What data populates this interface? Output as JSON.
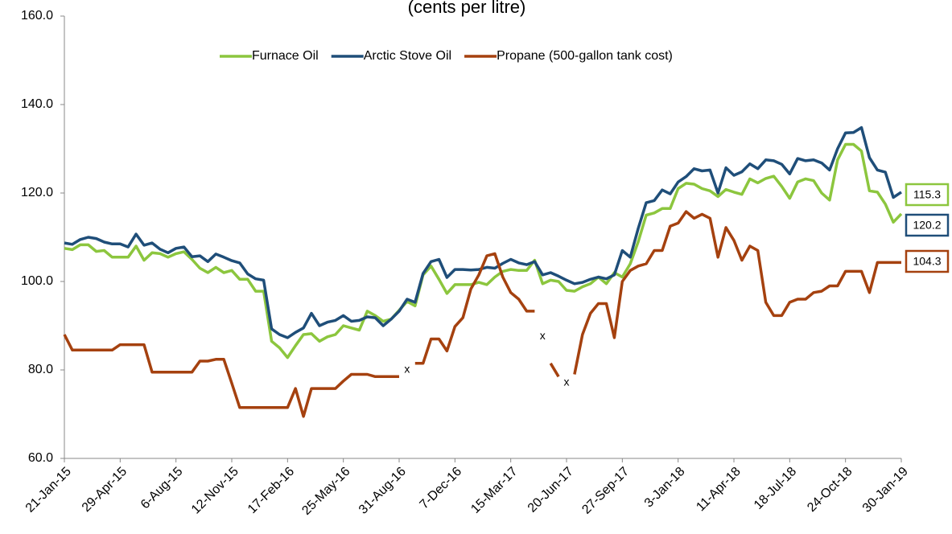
{
  "chart_data": {
    "type": "line",
    "title": "(cents per litre)",
    "categories": [
      "21-Jan-15",
      null,
      null,
      null,
      null,
      null,
      null,
      "29-Apr-15",
      null,
      null,
      null,
      null,
      null,
      null,
      "6-Aug-15",
      null,
      null,
      null,
      null,
      null,
      null,
      "12-Nov-15",
      null,
      null,
      null,
      null,
      null,
      null,
      "17-Feb-16",
      null,
      null,
      null,
      null,
      null,
      null,
      "25-May-16",
      null,
      null,
      null,
      null,
      null,
      null,
      "31-Aug-16",
      null,
      null,
      null,
      null,
      null,
      null,
      "7-Dec-16",
      null,
      null,
      null,
      null,
      null,
      null,
      "15-Mar-17",
      null,
      null,
      null,
      null,
      null,
      null,
      "20-Jun-17",
      null,
      null,
      null,
      null,
      null,
      null,
      "27-Sep-17",
      null,
      null,
      null,
      null,
      null,
      null,
      "3-Jan-18",
      null,
      null,
      null,
      null,
      null,
      null,
      "11-Apr-18",
      null,
      null,
      null,
      null,
      null,
      null,
      "18-Jul-18",
      null,
      null,
      null,
      null,
      null,
      null,
      "24-Oct-18",
      null,
      null,
      null,
      null,
      null,
      null,
      "30-Jan-19"
    ],
    "series": [
      {
        "name": "Furnace Oil",
        "color": "#8cc63e",
        "values": [
          107.5,
          107.2,
          108.3,
          108.3,
          106.8,
          107,
          105.5,
          105.5,
          105.5,
          108,
          104.8,
          106.5,
          106.3,
          105.5,
          106.3,
          106.7,
          105,
          103,
          102,
          103.2,
          102,
          102.5,
          100.5,
          100.5,
          97.8,
          97.8,
          86.5,
          85,
          82.8,
          85.5,
          88,
          88.2,
          86.5,
          87.5,
          88,
          90,
          89.5,
          89,
          93.3,
          92.3,
          91,
          91.5,
          93.5,
          95.5,
          94.5,
          101.5,
          103.5,
          100.5,
          97.3,
          99.3,
          99.3,
          99.3,
          99.8,
          99.3,
          101,
          102.3,
          102.7,
          102.5,
          102.5,
          104.8,
          99.5,
          100.3,
          100,
          98,
          97.8,
          98.8,
          99.5,
          101,
          99.5,
          102,
          101,
          104,
          109,
          115,
          115.5,
          116.5,
          116.5,
          121,
          122.2,
          122,
          121,
          120.5,
          119.2,
          120.8,
          120.2,
          119.7,
          123.2,
          122.3,
          123.3,
          123.8,
          121.5,
          118.8,
          122.5,
          123.2,
          122.8,
          120,
          118.4,
          127.5,
          131,
          131,
          129.5,
          120.5,
          120.2,
          117.5,
          113.4,
          115.3
        ]
      },
      {
        "name": "Arctic Stove Oil",
        "color": "#1f4e79",
        "values": [
          108.7,
          108.4,
          109.5,
          110,
          109.7,
          108.9,
          108.5,
          108.5,
          107.8,
          110.7,
          108.2,
          108.7,
          107.3,
          106.5,
          107.5,
          107.8,
          105.6,
          105.8,
          104.5,
          106.2,
          105.5,
          104.7,
          104.2,
          101.7,
          100.6,
          100.3,
          89.3,
          88,
          87.3,
          88.5,
          89.5,
          92.8,
          90,
          90.8,
          91.2,
          92.3,
          91,
          91.2,
          92,
          91.8,
          90,
          91.5,
          93.3,
          96,
          95.3,
          101.8,
          104.5,
          105,
          100.9,
          102.7,
          102.7,
          102.6,
          102.7,
          103.2,
          103,
          104.1,
          105,
          104.2,
          103.8,
          104.5,
          101.5,
          102,
          101.2,
          100.3,
          99.5,
          99.8,
          100.5,
          101,
          100.6,
          101.5,
          107,
          105.5,
          112,
          117.8,
          118.3,
          120.7,
          119.8,
          122.5,
          123.7,
          125.5,
          125,
          125.2,
          120,
          125.7,
          124,
          124.8,
          126.6,
          125.5,
          127.5,
          127.3,
          126.5,
          124.3,
          127.8,
          127.3,
          127.5,
          126.8,
          125.2,
          130,
          133.6,
          133.7,
          134.8,
          128,
          125.2,
          124.7,
          119,
          120.2
        ]
      },
      {
        "name": "Propane (500-gallon tank cost)",
        "color": "#a5410f",
        "values": [
          88,
          84.5,
          84.5,
          84.5,
          84.5,
          84.5,
          84.5,
          85.7,
          85.7,
          85.7,
          85.7,
          79.5,
          79.5,
          79.5,
          79.5,
          79.5,
          79.5,
          82,
          82,
          82.4,
          82.4,
          77,
          71.5,
          71.5,
          71.5,
          71.5,
          71.5,
          71.5,
          71.5,
          75.8,
          69.5,
          75.8,
          75.8,
          75.8,
          75.8,
          77.5,
          79,
          79,
          79,
          78.5,
          78.5,
          78.5,
          78.5,
          null,
          81.5,
          81.5,
          87,
          87,
          84.3,
          89.8,
          91.8,
          98.3,
          101.5,
          105.8,
          106.3,
          101,
          97.5,
          96,
          93.3,
          93.3,
          null,
          81.5,
          78.5,
          null,
          79,
          88,
          92.8,
          95,
          95,
          87.3,
          100,
          102.5,
          103.5,
          104,
          107,
          107,
          112.5,
          113.2,
          115.8,
          114.3,
          115.2,
          114.3,
          105.5,
          112.2,
          109.3,
          104.8,
          108,
          107,
          95.3,
          92.3,
          92.3,
          95.3,
          96,
          96,
          97.5,
          97.8,
          99,
          99,
          102.3,
          102.3,
          102.3,
          97.5,
          104.3,
          104.3,
          104.3,
          104.3
        ]
      }
    ],
    "annotations": [
      {
        "text": "x",
        "x": 43,
        "y": 80
      },
      {
        "text": "x",
        "x": 60,
        "y": 87.6
      },
      {
        "text": "x",
        "x": 63,
        "y": 77.1
      }
    ],
    "ylim": [
      60,
      160
    ],
    "yticks": [
      {
        "value": 60,
        "label": "60.0"
      },
      {
        "value": 80,
        "label": "80.0"
      },
      {
        "value": 100,
        "label": "100.0"
      },
      {
        "value": 120,
        "label": "120.0"
      },
      {
        "value": 140,
        "label": "140.0"
      },
      {
        "value": 160,
        "label": "160.0"
      }
    ],
    "grid": false,
    "legend": "top"
  }
}
